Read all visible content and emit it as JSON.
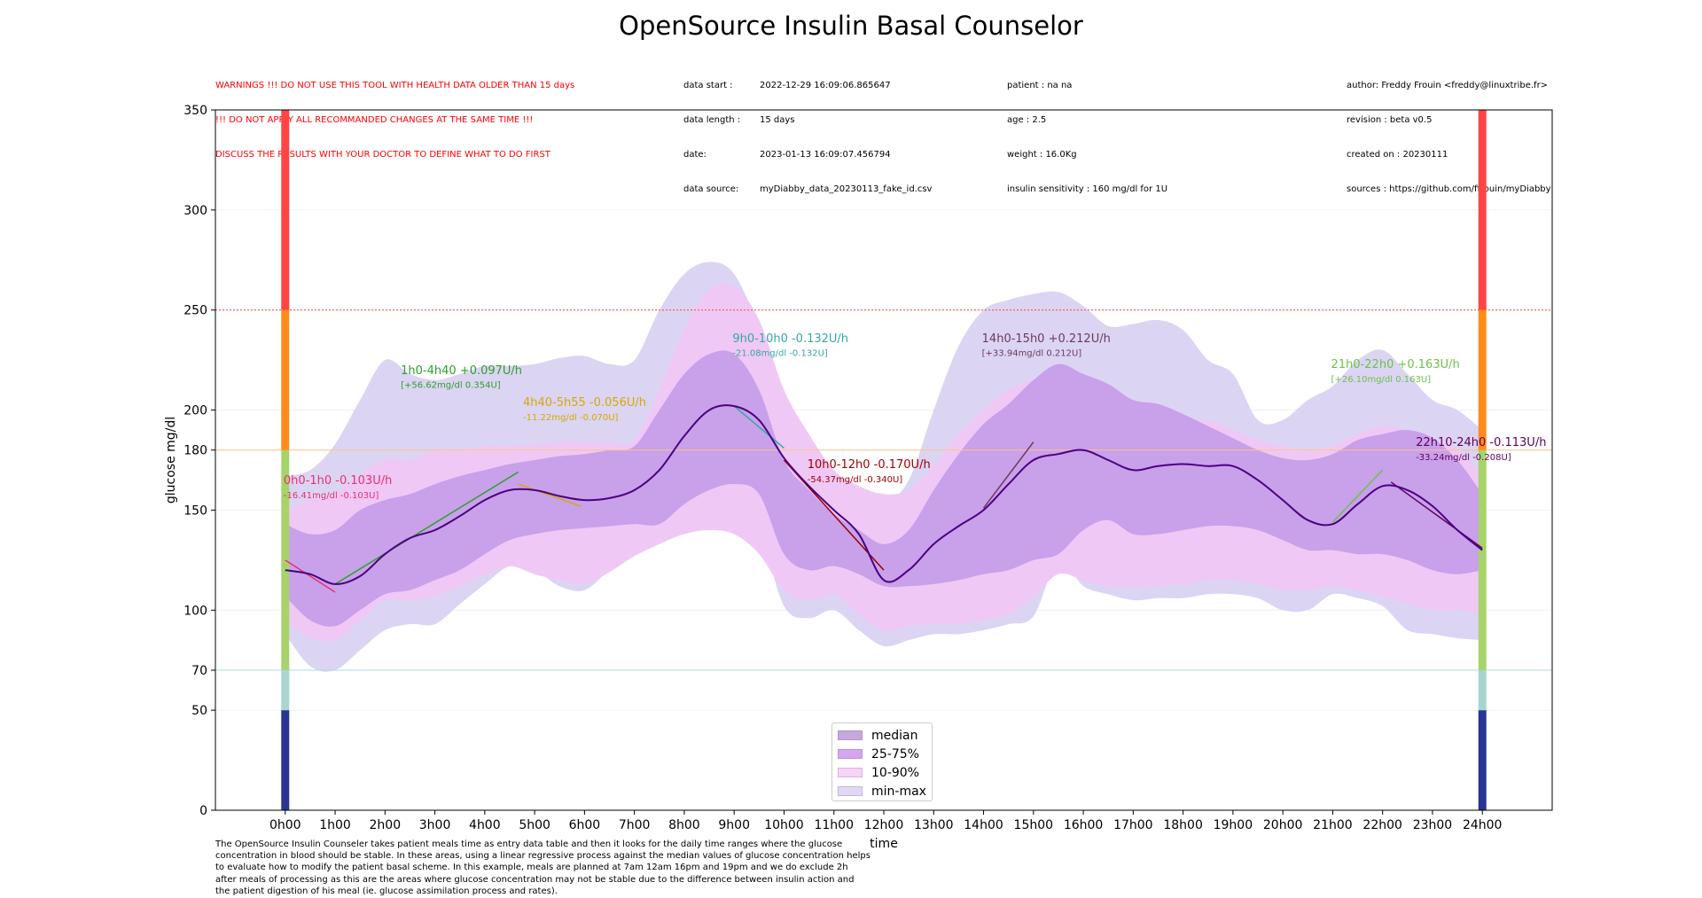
{
  "title": "OpenSource Insulin Basal Counselor",
  "warnings": [
    "WARNINGS !!! DO NOT USE THIS TOOL WITH HEALTH DATA OLDER THAN 15 days",
    "!!! DO NOT APPLY ALL RECOMMANDED CHANGES AT THE SAME TIME !!!",
    "DISCUSS THE RESULTS WITH YOUR DOCTOR TO DEFINE WHAT TO DO FIRST"
  ],
  "data_info": [
    {
      "k": "data start :",
      "v": "2022-12-29 16:09:06.865647"
    },
    {
      "k": "data length :",
      "v": "15 days"
    },
    {
      "k": "date:",
      "v": "2023-01-13 16:09:07.456794"
    },
    {
      "k": "data source:",
      "v": "myDiabby_data_20230113_fake_id.csv"
    }
  ],
  "patient_info": [
    "patient : na na",
    "age : 2.5",
    "weight : 16.0Kg",
    "insulin sensitivity : 160 mg/dl for 1U"
  ],
  "author_info": [
    "author: Freddy Frouin <freddy@linuxtribe.fr>",
    "revision : beta v0.5",
    "created on : 20230111",
    "sources : https://github.com/ffrouin/myDiabby"
  ],
  "footer": "The OpenSource Insulin Counseler takes patient meals time as entry data table and then it looks for the daily time ranges where the glucose concentration in blood should be stable. In these areas, using a linear regressive process against the median values of glucose concentration helps to evaluate how to modify the patient basal scheme. In this example, meals are planned at 7am 12am 16pm and 19pm and we do exclude 2h after meals of processing as this are the areas where glucose concentration may not be stable due to the difference between insulin action and the patient digestion of his meal (ie. glucose assimilation process and rates).",
  "chart_data": {
    "type": "area",
    "xlabel": "time",
    "ylabel": "glucose mg/dl",
    "xlim": [
      -1.4,
      25.4
    ],
    "ylim": [
      0,
      350
    ],
    "x_ticks": [
      0,
      1,
      2,
      3,
      4,
      5,
      6,
      7,
      8,
      9,
      10,
      11,
      12,
      13,
      14,
      15,
      16,
      17,
      18,
      19,
      20,
      21,
      22,
      23,
      24
    ],
    "x_tick_labels": [
      "0h00",
      "1h00",
      "2h00",
      "3h00",
      "4h00",
      "5h00",
      "6h00",
      "7h00",
      "8h00",
      "9h00",
      "10h00",
      "11h00",
      "12h00",
      "13h00",
      "14h00",
      "15h00",
      "16h00",
      "17h00",
      "18h00",
      "19h00",
      "20h00",
      "21h00",
      "22h00",
      "23h00",
      "24h00"
    ],
    "y_ticks": [
      0,
      50,
      70,
      100,
      150,
      180,
      200,
      250,
      300,
      350
    ],
    "reference_lines": [
      {
        "y": 250,
        "color": "#ff4040",
        "style": "dotted"
      },
      {
        "y": 180,
        "color": "#f5c58a",
        "style": "solid"
      },
      {
        "y": 70,
        "color": "#add8e6",
        "style": "solid"
      }
    ],
    "zone_bars_x": [
      0,
      24
    ],
    "zones": [
      {
        "from": 0,
        "to": 50,
        "color": "#283593"
      },
      {
        "from": 50,
        "to": 70,
        "color": "#a8d5d0"
      },
      {
        "from": 70,
        "to": 180,
        "color": "#a6d46a"
      },
      {
        "from": 180,
        "to": 250,
        "color": "#ff8c1a"
      },
      {
        "from": 250,
        "to": 350,
        "color": "#ff4444"
      }
    ],
    "x": [
      0,
      0.5,
      1,
      1.5,
      2,
      2.5,
      3,
      3.5,
      4,
      4.5,
      5,
      5.5,
      6,
      6.5,
      7,
      7.5,
      8,
      8.5,
      9,
      9.5,
      10,
      10.5,
      11,
      11.5,
      12,
      12.5,
      13,
      13.5,
      14,
      14.5,
      15,
      15.5,
      16,
      16.5,
      17,
      17.5,
      18,
      18.5,
      19,
      19.5,
      20,
      20.5,
      21,
      21.5,
      22,
      22.5,
      23,
      23.5,
      24
    ],
    "series": [
      {
        "name": "min-max",
        "color": "#dcd4f3",
        "low": [
          88,
          72,
          70,
          80,
          90,
          93,
          93,
          103,
          113,
          122,
          120,
          112,
          110,
          120,
          128,
          138,
          143,
          147,
          147,
          140,
          102,
          96,
          100,
          90,
          82,
          85,
          88,
          88,
          90,
          93,
          97,
          125,
          112,
          108,
          105,
          106,
          106,
          108,
          108,
          106,
          100,
          100,
          108,
          106,
          102,
          90,
          88,
          86,
          85
        ],
        "high": [
          167,
          170,
          183,
          205,
          225,
          218,
          215,
          218,
          222,
          222,
          223,
          226,
          227,
          223,
          225,
          250,
          268,
          274,
          268,
          240,
          200,
          178,
          163,
          150,
          153,
          165,
          200,
          232,
          250,
          255,
          258,
          259,
          252,
          242,
          243,
          245,
          240,
          225,
          218,
          195,
          195,
          205,
          212,
          225,
          230,
          218,
          205,
          200,
          190
        ]
      },
      {
        "name": "10-90%",
        "color": "#f0c8f5",
        "low": [
          95,
          86,
          85,
          95,
          105,
          105,
          107,
          112,
          118,
          122,
          118,
          115,
          113,
          119,
          127,
          133,
          138,
          140,
          138,
          128,
          110,
          105,
          108,
          98,
          90,
          92,
          93,
          93,
          95,
          98,
          107,
          118,
          115,
          112,
          112,
          112,
          113,
          115,
          115,
          113,
          110,
          110,
          112,
          110,
          107,
          103,
          100,
          100,
          98
        ],
        "high": [
          150,
          155,
          158,
          168,
          175,
          175,
          180,
          180,
          182,
          182,
          183,
          184,
          184,
          184,
          185,
          210,
          240,
          260,
          262,
          245,
          210,
          188,
          170,
          162,
          158,
          160,
          172,
          188,
          200,
          210,
          215,
          216,
          205,
          200,
          198,
          198,
          195,
          195,
          190,
          185,
          182,
          180,
          182,
          188,
          192,
          190,
          185,
          180,
          168
        ]
      },
      {
        "name": "25-75%",
        "color": "#c9a0ea",
        "low": [
          107,
          95,
          92,
          100,
          108,
          110,
          115,
          120,
          128,
          135,
          138,
          140,
          141,
          142,
          143,
          143,
          153,
          160,
          163,
          158,
          128,
          120,
          122,
          118,
          112,
          112,
          113,
          115,
          118,
          120,
          125,
          128,
          140,
          145,
          138,
          138,
          140,
          142,
          142,
          140,
          135,
          130,
          130,
          128,
          128,
          125,
          120,
          118,
          120
        ],
        "high": [
          143,
          138,
          140,
          150,
          155,
          158,
          163,
          167,
          170,
          173,
          175,
          177,
          178,
          180,
          182,
          200,
          218,
          228,
          228,
          210,
          175,
          160,
          148,
          140,
          133,
          140,
          160,
          178,
          193,
          203,
          215,
          223,
          218,
          213,
          205,
          203,
          198,
          192,
          186,
          180,
          176,
          175,
          178,
          185,
          188,
          190,
          186,
          175,
          158
        ]
      },
      {
        "name": "median",
        "color": "#4b0082",
        "values": [
          120,
          118,
          113,
          117,
          128,
          136,
          140,
          147,
          155,
          160,
          160,
          157,
          155,
          156,
          160,
          170,
          187,
          200,
          202,
          195,
          176,
          162,
          150,
          138,
          115,
          120,
          133,
          142,
          150,
          163,
          175,
          178,
          180,
          175,
          170,
          172,
          173,
          172,
          172,
          165,
          155,
          145,
          143,
          153,
          162,
          160,
          152,
          140,
          130
        ]
      }
    ],
    "regressions": [
      {
        "label": "0h0-1h0 -0.103U/h",
        "detail": "-16.41mg/dl -0.103U]",
        "color": "#e8316f",
        "x0": 0,
        "y0": 125,
        "x1": 1,
        "y1": 109,
        "lx": 0.5,
        "ly": 163,
        "dy": 156
      },
      {
        "label": "1h0-4h40 +0.097U/h",
        "detail": "[+56.62mg/dl 0.354U]",
        "color": "#2ca02c",
        "x0": 1,
        "y0": 113,
        "x1": 4.67,
        "y1": 169,
        "lx": 2.85,
        "ly": 218,
        "dy": 211
      },
      {
        "label": "4h40-5h55 -0.056U/h",
        "detail": "-11.22mg/dl -0.070U]",
        "color": "#d4aa00",
        "x0": 4.67,
        "y0": 163,
        "x1": 5.92,
        "y1": 152,
        "lx": 5.3,
        "ly": 202,
        "dy": 195
      },
      {
        "label": "9h0-10h0 -0.132U/h",
        "detail": "-21.08mg/dl -0.132U]",
        "color": "#37a7a3",
        "x0": 9,
        "y0": 202,
        "x1": 10,
        "y1": 181,
        "lx": 9.5,
        "ly": 234,
        "dy": 227
      },
      {
        "label": "10h0-12h0 -0.170U/h",
        "detail": "-54.37mg/dl -0.340U]",
        "color": "#990000",
        "x0": 10,
        "y0": 175,
        "x1": 12,
        "y1": 120,
        "lx": 11,
        "ly": 171,
        "dy": 164
      },
      {
        "label": "14h0-15h0 +0.212U/h",
        "detail": "[+33.94mg/dl 0.212U]",
        "color": "#6b3a5a",
        "x0": 14,
        "y0": 151,
        "x1": 15,
        "y1": 184,
        "lx": 14.5,
        "ly": 234,
        "dy": 227
      },
      {
        "label": "21h0-22h0 +0.163U/h",
        "detail": "[+26.10mg/dl 0.163U]",
        "color": "#6cc24a",
        "x0": 21,
        "y0": 144,
        "x1": 22,
        "y1": 170,
        "lx": 21.5,
        "ly": 221,
        "dy": 214
      },
      {
        "label": "22h10-24h0 -0.113U/h",
        "detail": "-33.24mg/dl -0.208U]",
        "color": "#5c0060",
        "x0": 22.17,
        "y0": 164,
        "x1": 24,
        "y1": 131,
        "lx": 23.2,
        "ly": 182,
        "dy": 175
      }
    ],
    "legend": {
      "position": "lower-center",
      "entries": [
        {
          "name": "median",
          "color": "#c6a8dc"
        },
        {
          "name": "25-75%",
          "color": "#d4a6f0"
        },
        {
          "name": "10-90%",
          "color": "#f7d3f7"
        },
        {
          "name": "min-max",
          "color": "#e0d8f5"
        }
      ]
    }
  }
}
